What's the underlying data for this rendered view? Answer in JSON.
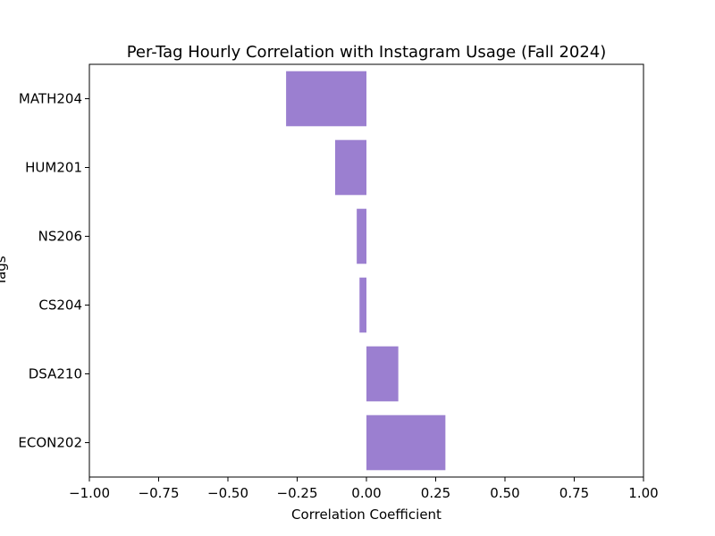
{
  "chart_data": {
    "type": "bar",
    "orientation": "horizontal",
    "title": "Per-Tag Hourly Correlation with Instagram Usage (Fall 2024)",
    "xlabel": "Correlation Coefficient",
    "ylabel": "Tags",
    "xlim": [
      -1.0,
      1.0
    ],
    "xticks": [
      "−1.00",
      "−0.75",
      "−0.50",
      "−0.25",
      "0.00",
      "0.25",
      "0.50",
      "0.75",
      "1.00"
    ],
    "categories": [
      "MATH204",
      "HUM201",
      "NS206",
      "CS204",
      "DSA210",
      "ECON202"
    ],
    "values": [
      -0.29,
      -0.113,
      -0.035,
      -0.025,
      0.115,
      0.285
    ],
    "bar_color": "#9b7fd0",
    "grid": false,
    "legend": "none"
  }
}
